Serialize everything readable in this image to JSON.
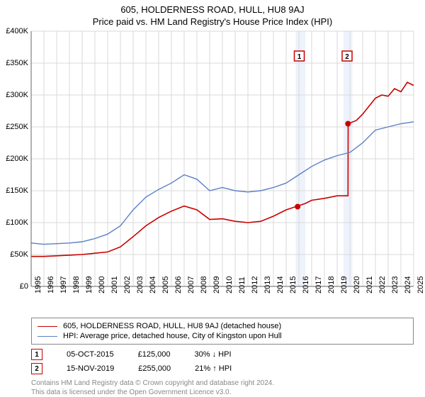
{
  "title": "605, HOLDERNESS ROAD, HULL, HU8 9AJ",
  "subtitle": "Price paid vs. HM Land Registry's House Price Index (HPI)",
  "chart": {
    "type": "line",
    "background_color": "#ffffff",
    "grid_color": "#d9d9d9",
    "axis_color": "#666666",
    "label_fontsize": 11,
    "ylim": [
      0,
      400000
    ],
    "ytick_step": 50000,
    "ylabels": [
      "£0",
      "£50K",
      "£100K",
      "£150K",
      "£200K",
      "£250K",
      "£300K",
      "£350K",
      "£400K"
    ],
    "x_years": [
      1995,
      1996,
      1997,
      1998,
      1999,
      2000,
      2001,
      2002,
      2003,
      2004,
      2005,
      2006,
      2007,
      2008,
      2009,
      2010,
      2011,
      2012,
      2013,
      2014,
      2015,
      2016,
      2017,
      2018,
      2019,
      2020,
      2021,
      2022,
      2023,
      2024,
      2025
    ],
    "highlight_bands": [
      {
        "from_year": 2015.75,
        "to_year": 2016.5,
        "color": "#eef2fb"
      },
      {
        "from_year": 2019.5,
        "to_year": 2020.2,
        "color": "#eef2fb"
      }
    ],
    "markers": [
      {
        "id": "1",
        "year": 2015.9,
        "value": 125000,
        "label_year": 2015.75,
        "label_y": 360000,
        "border_color": "#c90000"
      },
      {
        "id": "2",
        "year": 2019.85,
        "value": 255000,
        "label_year": 2019.5,
        "label_y": 360000,
        "border_color": "#c90000"
      }
    ],
    "series": [
      {
        "name": "property_price",
        "color": "#c90000",
        "line_width": 1.6,
        "points": [
          [
            1995,
            47000
          ],
          [
            1996,
            47000
          ],
          [
            1997,
            48000
          ],
          [
            1998,
            49000
          ],
          [
            1999,
            50000
          ],
          [
            2000,
            52000
          ],
          [
            2001,
            54000
          ],
          [
            2002,
            62000
          ],
          [
            2003,
            78000
          ],
          [
            2004,
            95000
          ],
          [
            2005,
            108000
          ],
          [
            2006,
            118000
          ],
          [
            2007,
            126000
          ],
          [
            2008,
            120000
          ],
          [
            2009,
            105000
          ],
          [
            2010,
            106000
          ],
          [
            2011,
            102000
          ],
          [
            2012,
            100000
          ],
          [
            2013,
            102000
          ],
          [
            2014,
            110000
          ],
          [
            2015,
            120000
          ],
          [
            2015.75,
            125000
          ],
          [
            2015.76,
            125000
          ],
          [
            2016.5,
            130000
          ],
          [
            2017,
            135000
          ],
          [
            2018,
            138000
          ],
          [
            2019,
            142000
          ],
          [
            2019.85,
            142000
          ],
          [
            2019.86,
            255000
          ],
          [
            2020.5,
            260000
          ],
          [
            2021,
            270000
          ],
          [
            2022,
            295000
          ],
          [
            2022.5,
            300000
          ],
          [
            2023,
            298000
          ],
          [
            2023.5,
            310000
          ],
          [
            2024,
            305000
          ],
          [
            2024.5,
            320000
          ],
          [
            2025,
            315000
          ]
        ]
      },
      {
        "name": "hpi",
        "color": "#5b7fc7",
        "line_width": 1.4,
        "points": [
          [
            1995,
            68000
          ],
          [
            1996,
            66000
          ],
          [
            1997,
            67000
          ],
          [
            1998,
            68000
          ],
          [
            1999,
            70000
          ],
          [
            2000,
            75000
          ],
          [
            2001,
            82000
          ],
          [
            2002,
            95000
          ],
          [
            2003,
            120000
          ],
          [
            2004,
            140000
          ],
          [
            2005,
            152000
          ],
          [
            2006,
            162000
          ],
          [
            2007,
            175000
          ],
          [
            2008,
            168000
          ],
          [
            2009,
            150000
          ],
          [
            2010,
            155000
          ],
          [
            2011,
            150000
          ],
          [
            2012,
            148000
          ],
          [
            2013,
            150000
          ],
          [
            2014,
            155000
          ],
          [
            2015,
            162000
          ],
          [
            2016,
            175000
          ],
          [
            2017,
            188000
          ],
          [
            2018,
            198000
          ],
          [
            2019,
            205000
          ],
          [
            2020,
            210000
          ],
          [
            2021,
            225000
          ],
          [
            2022,
            245000
          ],
          [
            2023,
            250000
          ],
          [
            2024,
            255000
          ],
          [
            2025,
            258000
          ]
        ]
      }
    ]
  },
  "legend": {
    "series1_label": "605, HOLDERNESS ROAD, HULL, HU8 9AJ (detached house)",
    "series2_label": "HPI: Average price, detached house, City of Kingston upon Hull"
  },
  "transactions": [
    {
      "id": "1",
      "date": "05-OCT-2015",
      "price": "£125,000",
      "delta": "30% ↓ HPI",
      "border_color": "#c90000"
    },
    {
      "id": "2",
      "date": "15-NOV-2019",
      "price": "£255,000",
      "delta": "21% ↑ HPI",
      "border_color": "#c90000"
    }
  ],
  "footer": {
    "line1": "Contains HM Land Registry data © Crown copyright and database right 2024.",
    "line2": "This data is licensed under the Open Government Licence v3.0."
  }
}
